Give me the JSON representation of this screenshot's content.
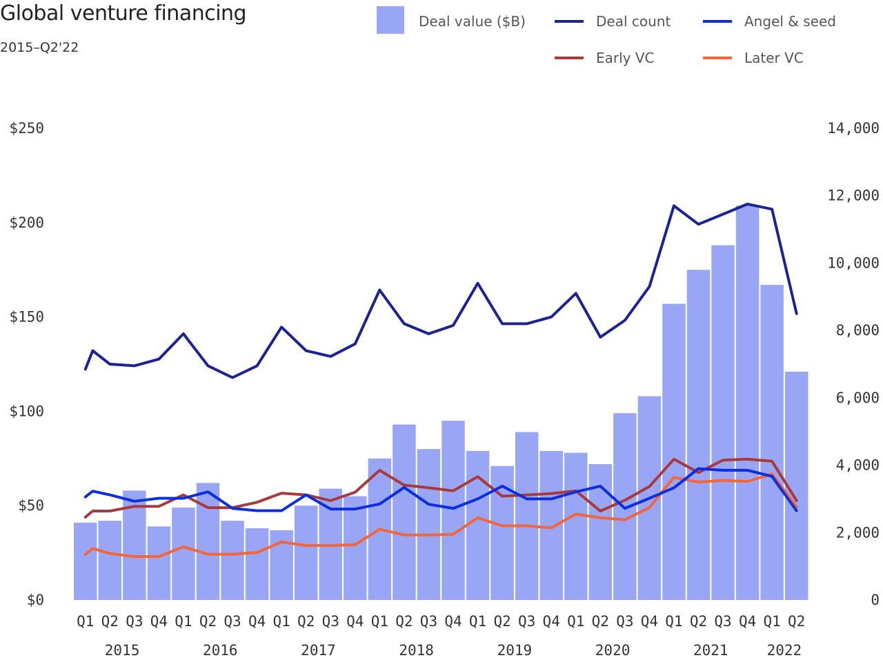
{
  "title": "Global venture financing",
  "subtitle": "2015–Q2'22",
  "chart_data": {
    "type": "bar",
    "categories": [
      "Q1",
      "Q2",
      "Q3",
      "Q4",
      "Q1",
      "Q2",
      "Q3",
      "Q4",
      "Q1",
      "Q2",
      "Q3",
      "Q4",
      "Q1",
      "Q2",
      "Q3",
      "Q4",
      "Q1",
      "Q2",
      "Q3",
      "Q4",
      "Q1",
      "Q2",
      "Q3",
      "Q4",
      "Q1",
      "Q2",
      "Q3",
      "Q4",
      "Q1",
      "Q2"
    ],
    "year_labels": [
      "2015",
      "2016",
      "2017",
      "2018",
      "2019",
      "2020",
      "2021",
      "2022"
    ],
    "left_axis": {
      "ticks": [
        "$0",
        "$50",
        "$100",
        "$150",
        "$200",
        "$250"
      ],
      "ylim": [
        0,
        250
      ]
    },
    "right_axis": {
      "ticks": [
        "0",
        "2,000",
        "4,000",
        "6,000",
        "8,000",
        "10,000",
        "12,000",
        "14,000"
      ],
      "ylim": [
        0,
        14000
      ]
    },
    "legend": [
      "Deal value ($B)",
      "Deal count",
      "Angel & seed",
      "Early VC",
      "Later VC"
    ],
    "colors": {
      "bars": "#99a6f5",
      "deal_count": "#1a2296",
      "angel_seed": "#0a2ee0",
      "early_vc": "#a83a3a",
      "later_vc": "#f26638"
    },
    "bars": {
      "name": "Deal value ($B)",
      "axis": "left",
      "values": [
        41,
        42,
        58,
        39,
        49,
        62,
        42,
        38,
        37,
        50,
        59,
        55,
        75,
        93,
        80,
        95,
        79,
        71,
        89,
        79,
        78,
        72,
        99,
        108,
        157,
        175,
        188,
        209,
        167,
        121
      ]
    },
    "series": [
      {
        "name": "Deal count",
        "axis": "right",
        "x": [
          0,
          0.3,
          1,
          2,
          3,
          4,
          5,
          6,
          7,
          8,
          9,
          10,
          11,
          12,
          13,
          14,
          15,
          16,
          17,
          18,
          19,
          20,
          21,
          22,
          23,
          24,
          25,
          26,
          27,
          28,
          29
        ],
        "values": [
          6850,
          7400,
          7000,
          6950,
          7150,
          7900,
          6950,
          6600,
          6950,
          8100,
          7400,
          7230,
          7600,
          9200,
          8200,
          7900,
          8150,
          9400,
          8200,
          8200,
          8400,
          9100,
          7800,
          8300,
          9300,
          11700,
          11150,
          11450,
          11750,
          11600,
          8500
        ]
      },
      {
        "name": "Angel & seed",
        "axis": "right",
        "x": [
          0,
          0.3,
          1,
          2,
          3,
          4,
          5,
          6,
          7,
          8,
          9,
          10,
          11,
          12,
          13,
          14,
          15,
          16,
          17,
          18,
          19,
          20,
          21,
          22,
          23,
          24,
          25,
          26,
          27,
          28,
          29
        ],
        "values": [
          3060,
          3230,
          3120,
          2930,
          3020,
          3020,
          3210,
          2720,
          2650,
          2650,
          3120,
          2700,
          2700,
          2850,
          3340,
          2840,
          2720,
          3000,
          3380,
          3000,
          3000,
          3210,
          3380,
          2720,
          3020,
          3330,
          3900,
          3850,
          3850,
          3670,
          2650
        ]
      },
      {
        "name": "Early VC",
        "axis": "right",
        "x": [
          0,
          0.3,
          1,
          2,
          3,
          4,
          5,
          6,
          7,
          8,
          9,
          10,
          11,
          12,
          13,
          14,
          15,
          16,
          17,
          18,
          19,
          20,
          21,
          22,
          23,
          24,
          25,
          26,
          27,
          28,
          29
        ],
        "values": [
          2460,
          2640,
          2640,
          2780,
          2780,
          3120,
          2740,
          2740,
          2900,
          3170,
          3120,
          2950,
          3200,
          3850,
          3410,
          3330,
          3240,
          3660,
          3080,
          3120,
          3160,
          3240,
          2640,
          2960,
          3370,
          4180,
          3780,
          4150,
          4180,
          4120,
          2950
        ]
      },
      {
        "name": "Later VC",
        "axis": "right",
        "x": [
          0,
          0.3,
          1,
          2,
          3,
          4,
          5,
          6,
          7,
          8,
          9,
          10,
          11,
          12,
          13,
          14,
          15,
          16,
          17,
          18,
          19,
          20,
          21,
          22,
          23,
          24,
          25,
          26,
          27,
          28,
          29
        ],
        "values": [
          1350,
          1530,
          1380,
          1290,
          1290,
          1580,
          1360,
          1360,
          1410,
          1720,
          1620,
          1620,
          1640,
          2100,
          1930,
          1930,
          1950,
          2440,
          2200,
          2200,
          2140,
          2550,
          2440,
          2380,
          2740,
          3640,
          3500,
          3550,
          3520,
          3740,
          2760
        ]
      }
    ]
  }
}
